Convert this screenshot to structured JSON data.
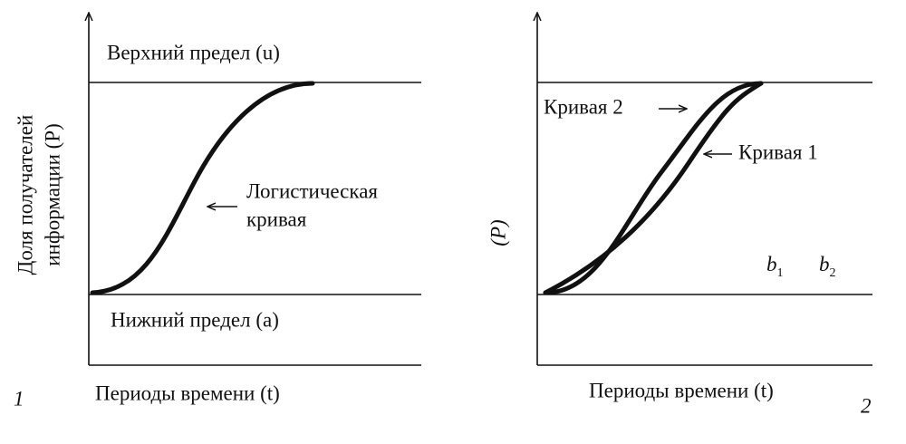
{
  "panel1": {
    "upper_limit": "Верхний предел (u)",
    "curve_label": [
      "Логистическая",
      "кривая"
    ],
    "lower_limit": "Нижний предел (a)",
    "y_label": [
      "Доля получателей",
      "информации (P)"
    ],
    "x_label": "Периоды времени (t)",
    "number": "1"
  },
  "panel2": {
    "curve2": "Кривая 2",
    "curve1": "Кривая 1",
    "y_label": "(P)",
    "b1": {
      "letter": "b",
      "index": "1"
    },
    "b2": {
      "letter": "b",
      "index": "2"
    },
    "x_label": "Периоды времени (t)",
    "number": "2"
  }
}
